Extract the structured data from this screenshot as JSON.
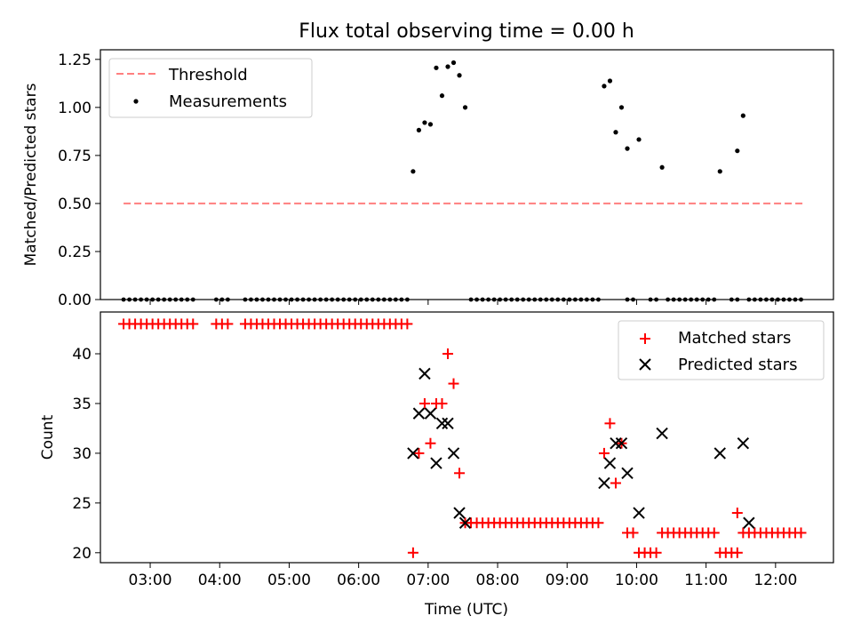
{
  "figure": {
    "title": "Flux total observing time = 0.00 h"
  },
  "chart_data": [
    {
      "type": "scatter",
      "panel": "top",
      "ylabel": "Matched/Predicted stars",
      "xlabel": "",
      "ylim": [
        0.0,
        1.3
      ],
      "xlim": [
        "02:17",
        "12:50"
      ],
      "yticks": [
        "0.00",
        "0.25",
        "0.50",
        "0.75",
        "1.00",
        "1.25"
      ],
      "grid": false,
      "legend": {
        "location": "upper left",
        "entries": [
          {
            "name": "Threshold",
            "marker": "dashed-line",
            "color": "#ff7f7f"
          },
          {
            "name": "Measurements",
            "marker": "dot",
            "color": "#000000"
          }
        ]
      },
      "threshold": {
        "name": "Threshold",
        "value": 0.5,
        "x_range": [
          "02:37",
          "12:25"
        ],
        "color": "#ff7f7f"
      },
      "series": [
        {
          "name": "Measurements",
          "color": "#000000",
          "zero_points": [
            "02:37",
            "02:42",
            "02:47",
            "02:52",
            "02:57",
            "03:02",
            "03:07",
            "03:12",
            "03:17",
            "03:22",
            "03:27",
            "03:32",
            "03:37",
            "03:57",
            "04:02",
            "04:07",
            "04:22",
            "04:27",
            "04:32",
            "04:37",
            "04:42",
            "04:47",
            "04:52",
            "04:57",
            "05:02",
            "05:07",
            "05:12",
            "05:17",
            "05:22",
            "05:27",
            "05:32",
            "05:37",
            "05:42",
            "05:47",
            "05:52",
            "05:57",
            "06:02",
            "06:07",
            "06:12",
            "06:17",
            "06:22",
            "06:27",
            "06:32",
            "06:37",
            "06:42",
            "07:37",
            "07:42",
            "07:47",
            "07:52",
            "07:57",
            "08:02",
            "08:07",
            "08:12",
            "08:17",
            "08:22",
            "08:27",
            "08:32",
            "08:37",
            "08:42",
            "08:47",
            "08:52",
            "08:57",
            "09:02",
            "09:07",
            "09:12",
            "09:17",
            "09:22",
            "09:27",
            "09:52",
            "09:57",
            "10:12",
            "10:17",
            "10:27",
            "10:32",
            "10:37",
            "10:42",
            "10:47",
            "10:52",
            "10:57",
            "11:02",
            "11:07",
            "11:22",
            "11:27",
            "11:37",
            "11:42",
            "11:47",
            "11:52",
            "11:57",
            "12:02",
            "12:07",
            "12:12",
            "12:17",
            "12:22"
          ],
          "points": [
            [
              "06:47",
              0.667
            ],
            [
              "06:52",
              0.882
            ],
            [
              "06:57",
              0.921
            ],
            [
              "07:02",
              0.912
            ],
            [
              "07:07",
              1.206
            ],
            [
              "07:12",
              1.061
            ],
            [
              "07:17",
              1.212
            ],
            [
              "07:22",
              1.233
            ],
            [
              "07:27",
              1.167
            ],
            [
              "07:32",
              1.0
            ],
            [
              "09:32",
              1.111
            ],
            [
              "09:37",
              1.138
            ],
            [
              "09:42",
              0.871
            ],
            [
              "09:47",
              1.0
            ],
            [
              "09:52",
              0.786
            ],
            [
              "10:02",
              0.833
            ],
            [
              "10:22",
              0.688
            ],
            [
              "11:12",
              0.667
            ],
            [
              "11:27",
              0.774
            ],
            [
              "11:32",
              0.957
            ]
          ]
        }
      ]
    },
    {
      "type": "scatter",
      "panel": "bottom",
      "ylabel": "Count",
      "xlabel": "Time (UTC)",
      "ylim": [
        19,
        44.2
      ],
      "xlim": [
        "02:17",
        "12:50"
      ],
      "yticks": [
        "20",
        "25",
        "30",
        "35",
        "40"
      ],
      "xticks": [
        "03:00",
        "04:00",
        "05:00",
        "06:00",
        "07:00",
        "08:00",
        "09:00",
        "10:00",
        "11:00",
        "12:00"
      ],
      "grid": false,
      "legend": {
        "location": "upper right",
        "entries": [
          {
            "name": "Matched stars",
            "marker": "plus",
            "color": "#ff0000"
          },
          {
            "name": "Predicted stars",
            "marker": "x",
            "color": "#000000"
          }
        ]
      },
      "series": [
        {
          "name": "Matched stars",
          "color": "#ff0000",
          "groups": [
            {
              "value": 43,
              "times": [
                "02:37",
                "02:42",
                "02:47",
                "02:52",
                "02:57",
                "03:02",
                "03:07",
                "03:12",
                "03:17",
                "03:22",
                "03:27",
                "03:32",
                "03:37",
                "03:57",
                "04:02",
                "04:07",
                "04:22",
                "04:27",
                "04:32",
                "04:37",
                "04:42",
                "04:47",
                "04:52",
                "04:57",
                "05:02",
                "05:07",
                "05:12",
                "05:17",
                "05:22",
                "05:27",
                "05:32",
                "05:37",
                "05:42",
                "05:47",
                "05:52",
                "05:57",
                "06:02",
                "06:07",
                "06:12",
                "06:17",
                "06:22",
                "06:27",
                "06:32",
                "06:37",
                "06:42"
              ]
            },
            {
              "value": 23,
              "times": [
                "07:37",
                "07:42",
                "07:47",
                "07:52",
                "07:57",
                "08:02",
                "08:07",
                "08:12",
                "08:17",
                "08:22",
                "08:27",
                "08:32",
                "08:37",
                "08:42",
                "08:47",
                "08:52",
                "08:57",
                "09:02",
                "09:07",
                "09:12",
                "09:17",
                "09:22",
                "09:27"
              ]
            },
            {
              "value": 22,
              "times": [
                "09:52",
                "09:57",
                "10:27",
                "10:32",
                "10:37",
                "10:42",
                "10:47",
                "10:52",
                "10:57",
                "11:02",
                "11:07",
                "11:37",
                "11:42",
                "11:47",
                "11:52",
                "11:57",
                "12:02",
                "12:07",
                "12:12",
                "12:17",
                "12:22"
              ]
            },
            {
              "value": 20,
              "times": [
                "10:07",
                "10:12",
                "10:17",
                "11:17",
                "11:22",
                "11:27"
              ]
            }
          ],
          "points": [
            [
              "06:47",
              20
            ],
            [
              "06:52",
              30
            ],
            [
              "06:57",
              35
            ],
            [
              "07:02",
              31
            ],
            [
              "07:07",
              35
            ],
            [
              "07:12",
              35
            ],
            [
              "07:17",
              40
            ],
            [
              "07:22",
              37
            ],
            [
              "07:27",
              28
            ],
            [
              "07:32",
              23
            ],
            [
              "09:32",
              30
            ],
            [
              "09:37",
              33
            ],
            [
              "09:42",
              27
            ],
            [
              "09:47",
              31
            ],
            [
              "10:02",
              20
            ],
            [
              "10:22",
              22
            ],
            [
              "11:12",
              20
            ],
            [
              "11:27",
              24
            ],
            [
              "11:32",
              22
            ]
          ]
        },
        {
          "name": "Predicted stars",
          "color": "#000000",
          "points": [
            [
              "06:47",
              30
            ],
            [
              "06:52",
              34
            ],
            [
              "06:57",
              38
            ],
            [
              "07:02",
              34
            ],
            [
              "07:07",
              29
            ],
            [
              "07:12",
              33
            ],
            [
              "07:17",
              33
            ],
            [
              "07:22",
              30
            ],
            [
              "07:27",
              24
            ],
            [
              "07:32",
              23
            ],
            [
              "09:32",
              27
            ],
            [
              "09:37",
              29
            ],
            [
              "09:42",
              31
            ],
            [
              "09:47",
              31
            ],
            [
              "09:52",
              28
            ],
            [
              "10:02",
              24
            ],
            [
              "10:22",
              32
            ],
            [
              "11:12",
              30
            ],
            [
              "11:32",
              31
            ],
            [
              "11:37",
              23
            ]
          ]
        }
      ]
    }
  ]
}
